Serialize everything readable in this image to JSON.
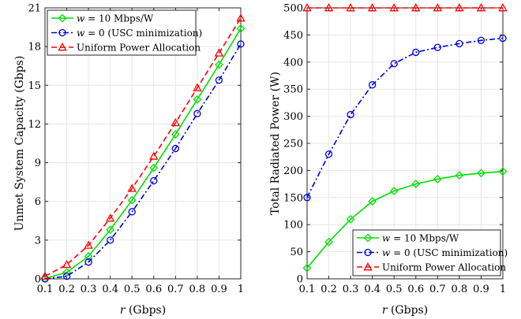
{
  "chart_data": [
    {
      "type": "line",
      "xlabel_var": "r",
      "xlabel_unit": " (Gbps)",
      "ylabel": "Unmet System Capacity (Gbps)",
      "xlim": [
        0.1,
        1
      ],
      "ylim": [
        0,
        21
      ],
      "x_ticks": [
        0.1,
        0.2,
        0.3,
        0.4,
        0.5,
        0.6,
        0.7,
        0.8,
        0.9,
        1
      ],
      "x_tick_labels": [
        "0.1",
        "0.2",
        "0.3",
        "0.4",
        "0.5",
        "0.6",
        "0.7",
        "0.8",
        "0.9",
        "1"
      ],
      "y_ticks": [
        0,
        3,
        6,
        9,
        12,
        15,
        18,
        21
      ],
      "y_tick_labels": [
        "0",
        "3",
        "6",
        "9",
        "12",
        "15",
        "18",
        "21"
      ],
      "grid": true,
      "legend_position": "top-left",
      "x": [
        0.1,
        0.2,
        0.3,
        0.4,
        0.5,
        0.6,
        0.7,
        0.8,
        0.9,
        1.0
      ],
      "series": [
        {
          "name_var": "w",
          "name_rest": " = 10 Mbps/W",
          "color": "#00e000",
          "dash": "",
          "marker": "diamond",
          "values": [
            0.02,
            0.5,
            1.75,
            3.8,
            6.1,
            8.6,
            11.2,
            13.9,
            16.6,
            19.4
          ]
        },
        {
          "name_var": "w",
          "name_rest": " = 0 (USC minimization)",
          "color": "#0000e0",
          "dash": "7,3,2,3",
          "marker": "circle",
          "values": [
            0.0,
            0.2,
            1.3,
            3.0,
            5.2,
            7.6,
            10.1,
            12.8,
            15.4,
            18.2
          ]
        },
        {
          "name_var": "",
          "name_rest": "Uniform Power Allocation",
          "color": "#ff0000",
          "dash": "7,4",
          "marker": "triangle",
          "values": [
            0.2,
            1.1,
            2.6,
            4.7,
            7.0,
            9.5,
            12.1,
            14.8,
            17.5,
            20.2
          ]
        }
      ]
    },
    {
      "type": "line",
      "xlabel_var": "r",
      "xlabel_unit": " (Gbps)",
      "ylabel": "Total Radiated Power (W)",
      "xlim": [
        0.1,
        1
      ],
      "ylim": [
        0,
        500
      ],
      "x_ticks": [
        0.1,
        0.2,
        0.3,
        0.4,
        0.5,
        0.6,
        0.7,
        0.8,
        0.9,
        1
      ],
      "x_tick_labels": [
        "0.1",
        "0.2",
        "0.3",
        "0.4",
        "0.5",
        "0.6",
        "0.7",
        "0.8",
        "0.9",
        "1"
      ],
      "y_ticks": [
        0,
        50,
        100,
        150,
        200,
        250,
        300,
        350,
        400,
        450,
        500
      ],
      "y_tick_labels": [
        "0",
        "50",
        "100",
        "150",
        "200",
        "250",
        "300",
        "350",
        "400",
        "450",
        "500"
      ],
      "grid": true,
      "legend_position": "bottom-right",
      "x": [
        0.1,
        0.2,
        0.3,
        0.4,
        0.5,
        0.6,
        0.7,
        0.8,
        0.9,
        1.0
      ],
      "series": [
        {
          "name_var": "w",
          "name_rest": " = 10 Mbps/W",
          "color": "#00e000",
          "dash": "",
          "marker": "diamond",
          "values": [
            20,
            68,
            110,
            143,
            162,
            175,
            184,
            191,
            195,
            198
          ]
        },
        {
          "name_var": "w",
          "name_rest": " = 0 (USC minimization)",
          "color": "#0000e0",
          "dash": "7,3,2,3",
          "marker": "circle",
          "values": [
            150,
            230,
            303,
            358,
            397,
            418,
            427,
            434,
            440,
            444
          ]
        },
        {
          "name_var": "",
          "name_rest": "Uniform Power Allocation",
          "color": "#ff0000",
          "dash": "7,4",
          "marker": "triangle",
          "values": [
            500,
            500,
            500,
            500,
            500,
            500,
            500,
            500,
            500,
            500
          ]
        }
      ]
    }
  ]
}
